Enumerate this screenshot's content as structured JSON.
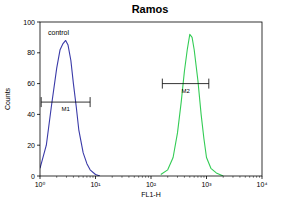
{
  "chart_data": {
    "type": "line",
    "title": "Ramos",
    "x_label": "FL1-H",
    "y_label": "Counts",
    "log": "x",
    "xlim": [
      1,
      10000
    ],
    "xticks": [
      {
        "value": 1,
        "label": "10⁰"
      },
      {
        "value": 10,
        "label": "10¹"
      },
      {
        "value": 100,
        "label": "10²"
      },
      {
        "value": 1000,
        "label": "10³"
      },
      {
        "value": 10000,
        "label": "10⁴"
      }
    ],
    "ylim": [
      0,
      100
    ],
    "yticks": [
      0,
      20,
      40,
      60,
      80,
      100
    ],
    "series": [
      {
        "name": "control",
        "color": "#3a3aa8",
        "x": [
          1,
          1.3,
          1.6,
          2,
          2.3,
          2.6,
          2.9,
          3.2,
          3.6,
          4,
          4.5,
          5,
          6,
          7,
          8,
          10,
          12
        ],
        "values": [
          5,
          20,
          45,
          70,
          82,
          86,
          88,
          85,
          75,
          60,
          45,
          30,
          15,
          8,
          4,
          1,
          0
        ]
      },
      {
        "color": "#33cc55",
        "x": [
          150,
          200,
          250,
          300,
          350,
          400,
          450,
          500,
          550,
          600,
          700,
          800,
          900,
          1000,
          1200,
          1500,
          2000
        ],
        "values": [
          1,
          4,
          12,
          28,
          48,
          68,
          82,
          92,
          90,
          82,
          62,
          40,
          24,
          12,
          5,
          2,
          0
        ]
      }
    ],
    "gates": [
      {
        "label": "M1",
        "x": [
          1.05,
          8
        ],
        "y": 48
      },
      {
        "label": "M2",
        "x": [
          160,
          1100
        ],
        "y": 60
      }
    ]
  }
}
